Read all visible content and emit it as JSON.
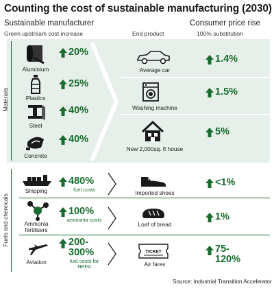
{
  "title": "Counting the cost of sustainable manufacturing (2030)",
  "headers": {
    "left": "Sustainable manufacturer",
    "left_sub": "Green upstream cost increase",
    "mid_sub": "End product",
    "right": "Consumer price rise",
    "right_sub": "100% substitution"
  },
  "sections": {
    "materials": "Materials",
    "fuels": "Fuels and chemicals"
  },
  "materials": [
    {
      "name": "Aluminium",
      "increase": "20%",
      "icon": "aluminium-roll-icon"
    },
    {
      "name": "Plastics",
      "increase": "25%",
      "icon": "plastic-bottle-icon"
    },
    {
      "name": "Steel",
      "increase": "40%",
      "icon": "steel-beam-icon"
    },
    {
      "name": "Concrete",
      "increase": "40%",
      "icon": "concrete-mixer-icon"
    }
  ],
  "material_products": [
    {
      "name": "Average car",
      "rise": "1.4%",
      "icon": "car-icon"
    },
    {
      "name": "Washing machine",
      "rise": "1.5%",
      "icon": "washing-machine-icon"
    },
    {
      "name": "New 2,000sq. ft house",
      "rise": "5%",
      "icon": "house-icon"
    }
  ],
  "fuels": [
    {
      "name": "Shipping",
      "increase": "480%",
      "note": "fuel costs",
      "product": "Imported shoes",
      "rise": "<1%",
      "icon": "ship-icon",
      "product_icon": "shoe-icon"
    },
    {
      "name": "Ammonia fertilisers",
      "increase": "100%",
      "note": "ammonia costs",
      "product": "Loaf of bread",
      "rise": "1%",
      "icon": "molecule-icon",
      "product_icon": "bread-icon"
    },
    {
      "name": "Aviation",
      "increase": "200-300%",
      "note": "fuel costs for HEFA",
      "product": "Air fares",
      "rise": "75-120%",
      "icon": "plane-icon",
      "product_icon": "ticket-icon"
    }
  ],
  "ticket_text": "TICKET",
  "source": "Source:  Industrial Transition Accelerator",
  "colors": {
    "accent": "#1a6b2e",
    "panel": "#e6efe9"
  }
}
